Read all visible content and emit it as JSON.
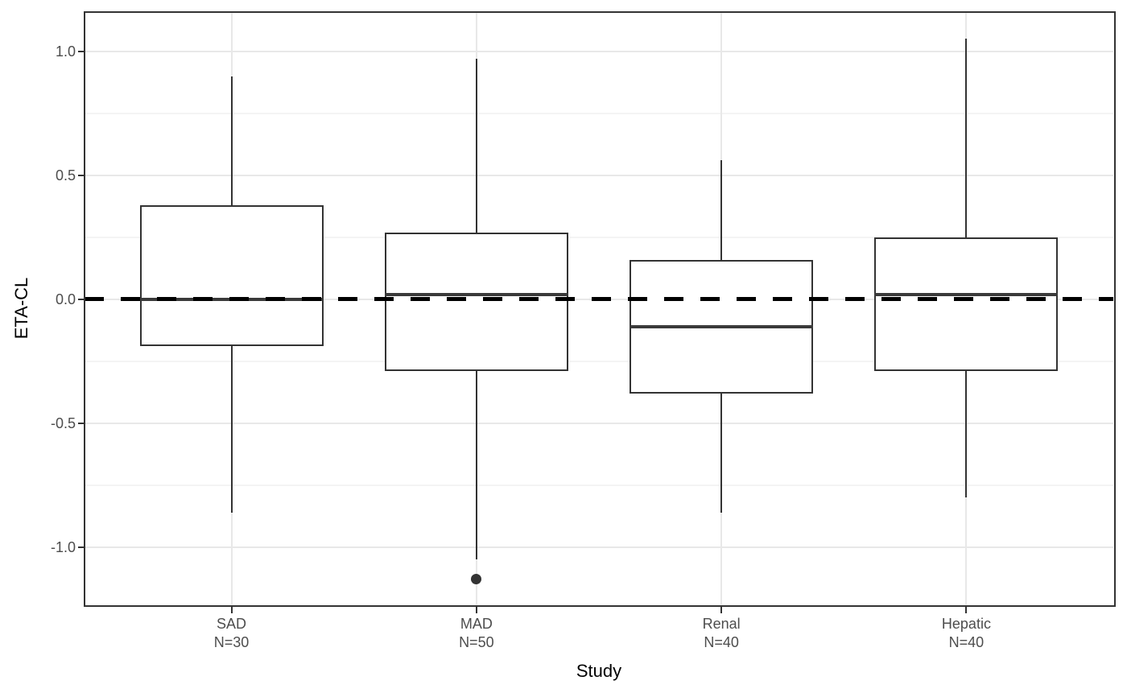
{
  "chart_data": {
    "type": "boxplot",
    "title": "",
    "xlabel": "Study",
    "ylabel": "ETA-CL",
    "categories": [
      "SAD",
      "MAD",
      "Renal",
      "Hepatic"
    ],
    "series": [
      {
        "category": "SAD",
        "n_label": "N=30",
        "whisker_low": -0.86,
        "q1": -0.19,
        "median": 0.0,
        "q3": 0.38,
        "whisker_high": 0.9,
        "outliers": []
      },
      {
        "category": "MAD",
        "n_label": "N=50",
        "whisker_low": -1.05,
        "q1": -0.29,
        "median": 0.02,
        "q3": 0.27,
        "whisker_high": 0.97,
        "outliers": [
          -1.13
        ]
      },
      {
        "category": "Renal",
        "n_label": "N=40",
        "whisker_low": -0.86,
        "q1": -0.38,
        "median": -0.11,
        "q3": 0.16,
        "whisker_high": 0.56,
        "outliers": []
      },
      {
        "category": "Hepatic",
        "n_label": "N=40",
        "whisker_low": -0.8,
        "q1": -0.29,
        "median": 0.02,
        "q3": 0.25,
        "whisker_high": 1.05,
        "outliers": []
      }
    ],
    "y_axis": {
      "major_ticks": [
        {
          "label": "1.0",
          "value": 1.0
        },
        {
          "label": "0.5",
          "value": 0.5
        },
        {
          "label": "0.0",
          "value": 0.0
        },
        {
          "label": "-0.5",
          "value": -0.5
        },
        {
          "label": "-1.0",
          "value": -1.0
        }
      ],
      "minor_gridlines": [
        0.75,
        0.25,
        -0.25,
        -0.75
      ],
      "ylim": [
        -1.23,
        1.16
      ]
    },
    "reference_line": {
      "value": 0.0,
      "linetype": "dashed",
      "color": "#000000"
    },
    "grid": true,
    "legend": false,
    "box_fill": "#ffffff",
    "box_stroke": "#333333"
  },
  "colors": {
    "background": "#ffffff",
    "panel_border": "#333333",
    "grid_major": "#e8e8e8",
    "grid_minor": "#f4f4f4",
    "tick_label": "#4d4d4d",
    "axis_title": "#000000",
    "outlier": "#333333"
  }
}
